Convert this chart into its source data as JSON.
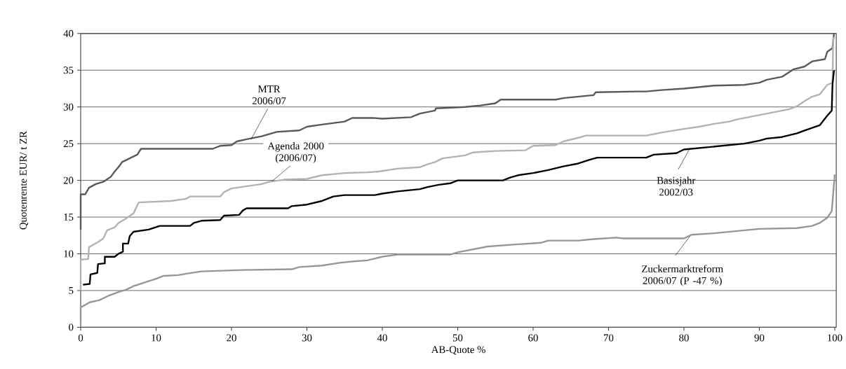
{
  "chart_data": {
    "type": "line",
    "xlabel": "AB-Quote %",
    "ylabel": "Quotenrente EUR/ t ZR",
    "xlim": [
      0,
      100.2
    ],
    "ylim": [
      0,
      40
    ],
    "xticks": [
      0,
      10,
      20,
      30,
      40,
      50,
      60,
      70,
      80,
      90,
      100
    ],
    "yticks": [
      0,
      5,
      10,
      15,
      20,
      25,
      30,
      35,
      40
    ],
    "grid": "y",
    "marker": "none",
    "line_style": "solid",
    "series": [
      {
        "color": "#595959",
        "x": [
          0,
          0,
          0.6,
          1.1,
          2,
          3,
          4,
          4.5,
          5,
          5.5,
          6.5,
          7.5,
          8,
          17.5,
          18.5,
          20,
          20.7,
          22,
          24,
          26,
          29,
          30,
          32,
          35,
          36,
          38.7,
          40,
          43.8,
          45,
          47,
          47.1,
          51,
          53,
          55,
          55.7,
          63,
          64,
          66,
          68,
          68.3,
          74,
          75,
          77,
          80,
          84,
          88,
          90,
          91,
          93,
          94.5,
          96,
          97,
          98.7,
          99,
          99.7,
          99.9
        ],
        "values": [
          13.3,
          18.1,
          18.1,
          19.0,
          19.5,
          19.8,
          20.5,
          21.2,
          21.8,
          22.5,
          23.0,
          23.5,
          24.3,
          24.3,
          24.7,
          24.8,
          25.3,
          25.6,
          26.0,
          26.6,
          26.8,
          27.3,
          27.6,
          28.0,
          28.5,
          28.5,
          28.4,
          28.6,
          29.1,
          29.5,
          29.8,
          30.0,
          30.2,
          30.5,
          31.0,
          31.0,
          31.2,
          31.4,
          31.6,
          32.0,
          32.1,
          32.1,
          32.3,
          32.5,
          32.9,
          33.0,
          33.3,
          33.7,
          34.1,
          35.1,
          35.5,
          36.2,
          36.5,
          37.5,
          38.0,
          40.0
        ]
      },
      {
        "color": "#b2b2b2",
        "x": [
          0,
          0,
          1,
          1.1,
          2.3,
          3,
          3.5,
          4.5,
          5,
          6,
          7,
          7.7,
          12,
          14,
          14.5,
          18.5,
          19,
          20,
          22,
          24,
          25,
          27,
          30,
          32,
          35,
          38,
          39.5,
          42,
          45,
          46,
          47,
          48,
          51,
          52,
          55,
          59,
          60,
          63,
          64,
          66,
          67,
          74,
          75,
          77,
          80,
          82,
          84,
          86,
          87,
          90,
          92,
          94,
          95,
          96,
          97,
          98,
          99,
          99.7,
          99.8
        ],
        "values": [
          5.0,
          9.2,
          9.3,
          10.9,
          11.6,
          12.1,
          13.2,
          13.6,
          14.2,
          14.8,
          15.5,
          17.0,
          17.2,
          17.5,
          17.8,
          17.8,
          18.4,
          18.9,
          19.2,
          19.5,
          19.8,
          20.1,
          20.2,
          20.7,
          21.0,
          21.1,
          21.2,
          21.6,
          21.8,
          22.2,
          22.5,
          23.0,
          23.4,
          23.8,
          24.0,
          24.1,
          24.7,
          24.8,
          25.3,
          25.8,
          26.1,
          26.1,
          26.1,
          26.5,
          27.0,
          27.3,
          27.7,
          28.0,
          28.3,
          28.9,
          29.3,
          29.7,
          30.1,
          30.8,
          31.4,
          31.7,
          33.0,
          33.3,
          39.5
        ]
      },
      {
        "color": "#000000",
        "x": [
          0.3,
          1.2,
          1.3,
          2.2,
          2.3,
          3.2,
          3.2,
          4.5,
          5,
          5.6,
          5.6,
          6.3,
          6.5,
          7,
          9,
          10.5,
          14.5,
          15,
          16,
          18.5,
          19,
          21,
          21.5,
          22,
          27.5,
          28,
          30,
          32,
          33.5,
          35,
          39,
          40,
          42,
          45,
          46,
          47.5,
          49,
          50,
          56,
          57,
          58,
          60,
          62,
          64,
          66,
          67.5,
          68.5,
          74,
          75,
          76,
          79,
          80,
          84,
          88,
          90,
          91,
          93,
          95,
          96,
          98,
          99,
          99.6,
          99.7,
          99.9
        ],
        "values": [
          5.8,
          5.9,
          7.2,
          7.4,
          8.6,
          8.7,
          9.6,
          9.6,
          10.0,
          10.3,
          11.4,
          11.4,
          12.4,
          13.0,
          13.3,
          13.8,
          13.8,
          14.2,
          14.5,
          14.6,
          15.2,
          15.3,
          15.9,
          16.2,
          16.2,
          16.5,
          16.7,
          17.2,
          17.8,
          18.0,
          18.0,
          18.2,
          18.5,
          18.8,
          19.1,
          19.4,
          19.6,
          20.0,
          20.0,
          20.4,
          20.7,
          21.0,
          21.4,
          21.9,
          22.3,
          22.8,
          23.1,
          23.1,
          23.1,
          23.5,
          23.7,
          24.2,
          24.6,
          25.0,
          25.4,
          25.7,
          25.9,
          26.4,
          26.8,
          27.5,
          28.8,
          29.5,
          33.0,
          35.0
        ]
      },
      {
        "color": "#969696",
        "x": [
          0,
          0,
          0.5,
          1.2,
          2.5,
          3.7,
          5,
          6,
          7,
          8.5,
          10,
          11,
          13,
          14,
          16,
          21.5,
          28,
          29,
          32,
          34.5,
          36.5,
          38,
          40,
          42,
          49,
          50,
          52,
          54,
          58,
          61,
          62,
          66,
          68,
          71,
          72,
          80,
          81,
          84,
          88,
          90,
          95,
          97,
          98,
          99,
          99.6,
          100
        ],
        "values": [
          0.6,
          2.7,
          3.0,
          3.4,
          3.7,
          4.3,
          4.8,
          5.1,
          5.6,
          6.1,
          6.6,
          7.0,
          7.1,
          7.3,
          7.6,
          7.8,
          7.9,
          8.2,
          8.4,
          8.8,
          9.0,
          9.1,
          9.6,
          9.9,
          9.9,
          10.2,
          10.6,
          11.0,
          11.3,
          11.5,
          11.8,
          11.8,
          12.0,
          12.2,
          12.1,
          12.1,
          12.6,
          12.8,
          13.2,
          13.4,
          13.5,
          13.8,
          14.2,
          14.9,
          15.8,
          20.8
        ]
      }
    ],
    "annotations": [
      {
        "text": "MTR 2006/07",
        "x": 22.6,
        "y": 25.6
      },
      {
        "text": "Agenda 2000 (2006/07)",
        "x": 25.4,
        "y": 19.9
      },
      {
        "text": "Basisjahr 2002/03",
        "x": 80.7,
        "y": 24.2
      },
      {
        "text": "Zuckermarktreform 2006/07 (P -47 %)",
        "x": 80.8,
        "y": 12.4
      }
    ]
  }
}
